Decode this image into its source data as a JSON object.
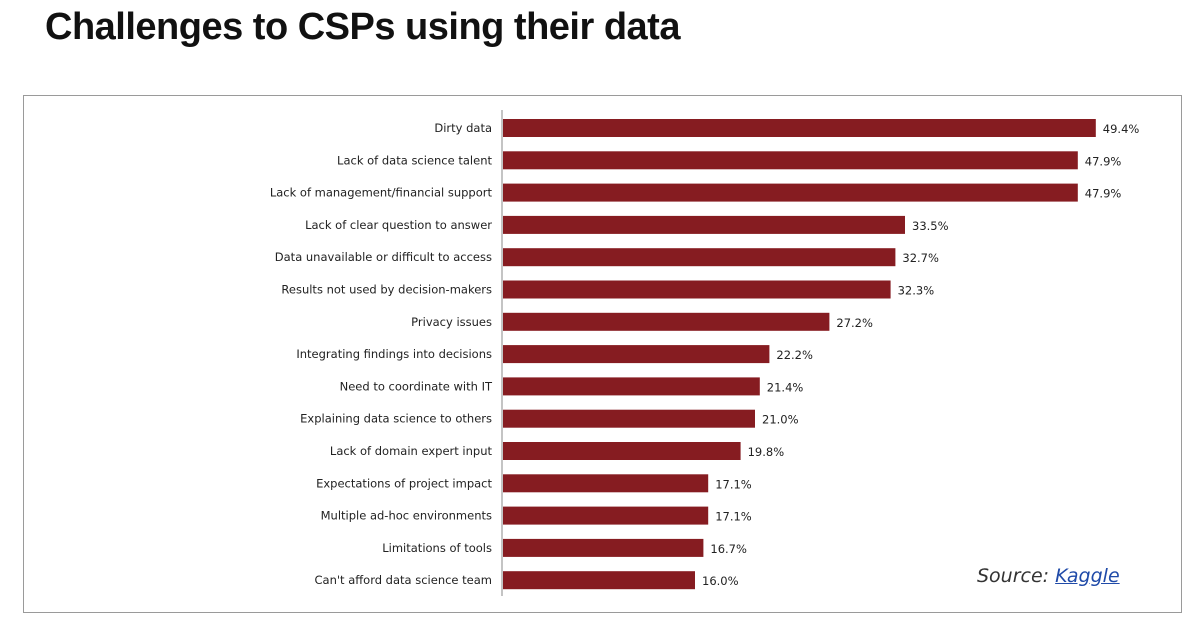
{
  "title": "Challenges to CSPs using their data",
  "source": {
    "prefix": "Source:",
    "link_text": "Kaggle"
  },
  "colors": {
    "bar": "#861c21",
    "link": "#1f4aa8"
  },
  "chart_data": {
    "type": "bar",
    "orientation": "horizontal",
    "categories": [
      "Dirty data",
      "Lack of data science talent",
      "Lack of management/financial support",
      "Lack of clear question to answer",
      "Data unavailable or difficult to access",
      "Results not used by decision-makers",
      "Privacy issues",
      "Integrating findings into decisions",
      "Need to coordinate with IT",
      "Explaining data science to others",
      "Lack of domain expert input",
      "Expectations of project impact",
      "Multiple ad-hoc environments",
      "Limitations of tools",
      "Can't afford data science team"
    ],
    "values": [
      49.4,
      47.9,
      47.9,
      33.5,
      32.7,
      32.3,
      27.2,
      22.2,
      21.4,
      21.0,
      19.8,
      17.1,
      17.1,
      16.7,
      16.0
    ],
    "value_labels": [
      "49.4%",
      "47.9%",
      "47.9%",
      "33.5%",
      "32.7%",
      "32.3%",
      "27.2%",
      "22.2%",
      "21.4%",
      "21.0%",
      "19.8%",
      "17.1%",
      "17.1%",
      "16.7%",
      "16.0%"
    ],
    "xlim": [
      0,
      50
    ],
    "unit": "%",
    "grid": false,
    "title": "",
    "xlabel": "",
    "ylabel": ""
  }
}
